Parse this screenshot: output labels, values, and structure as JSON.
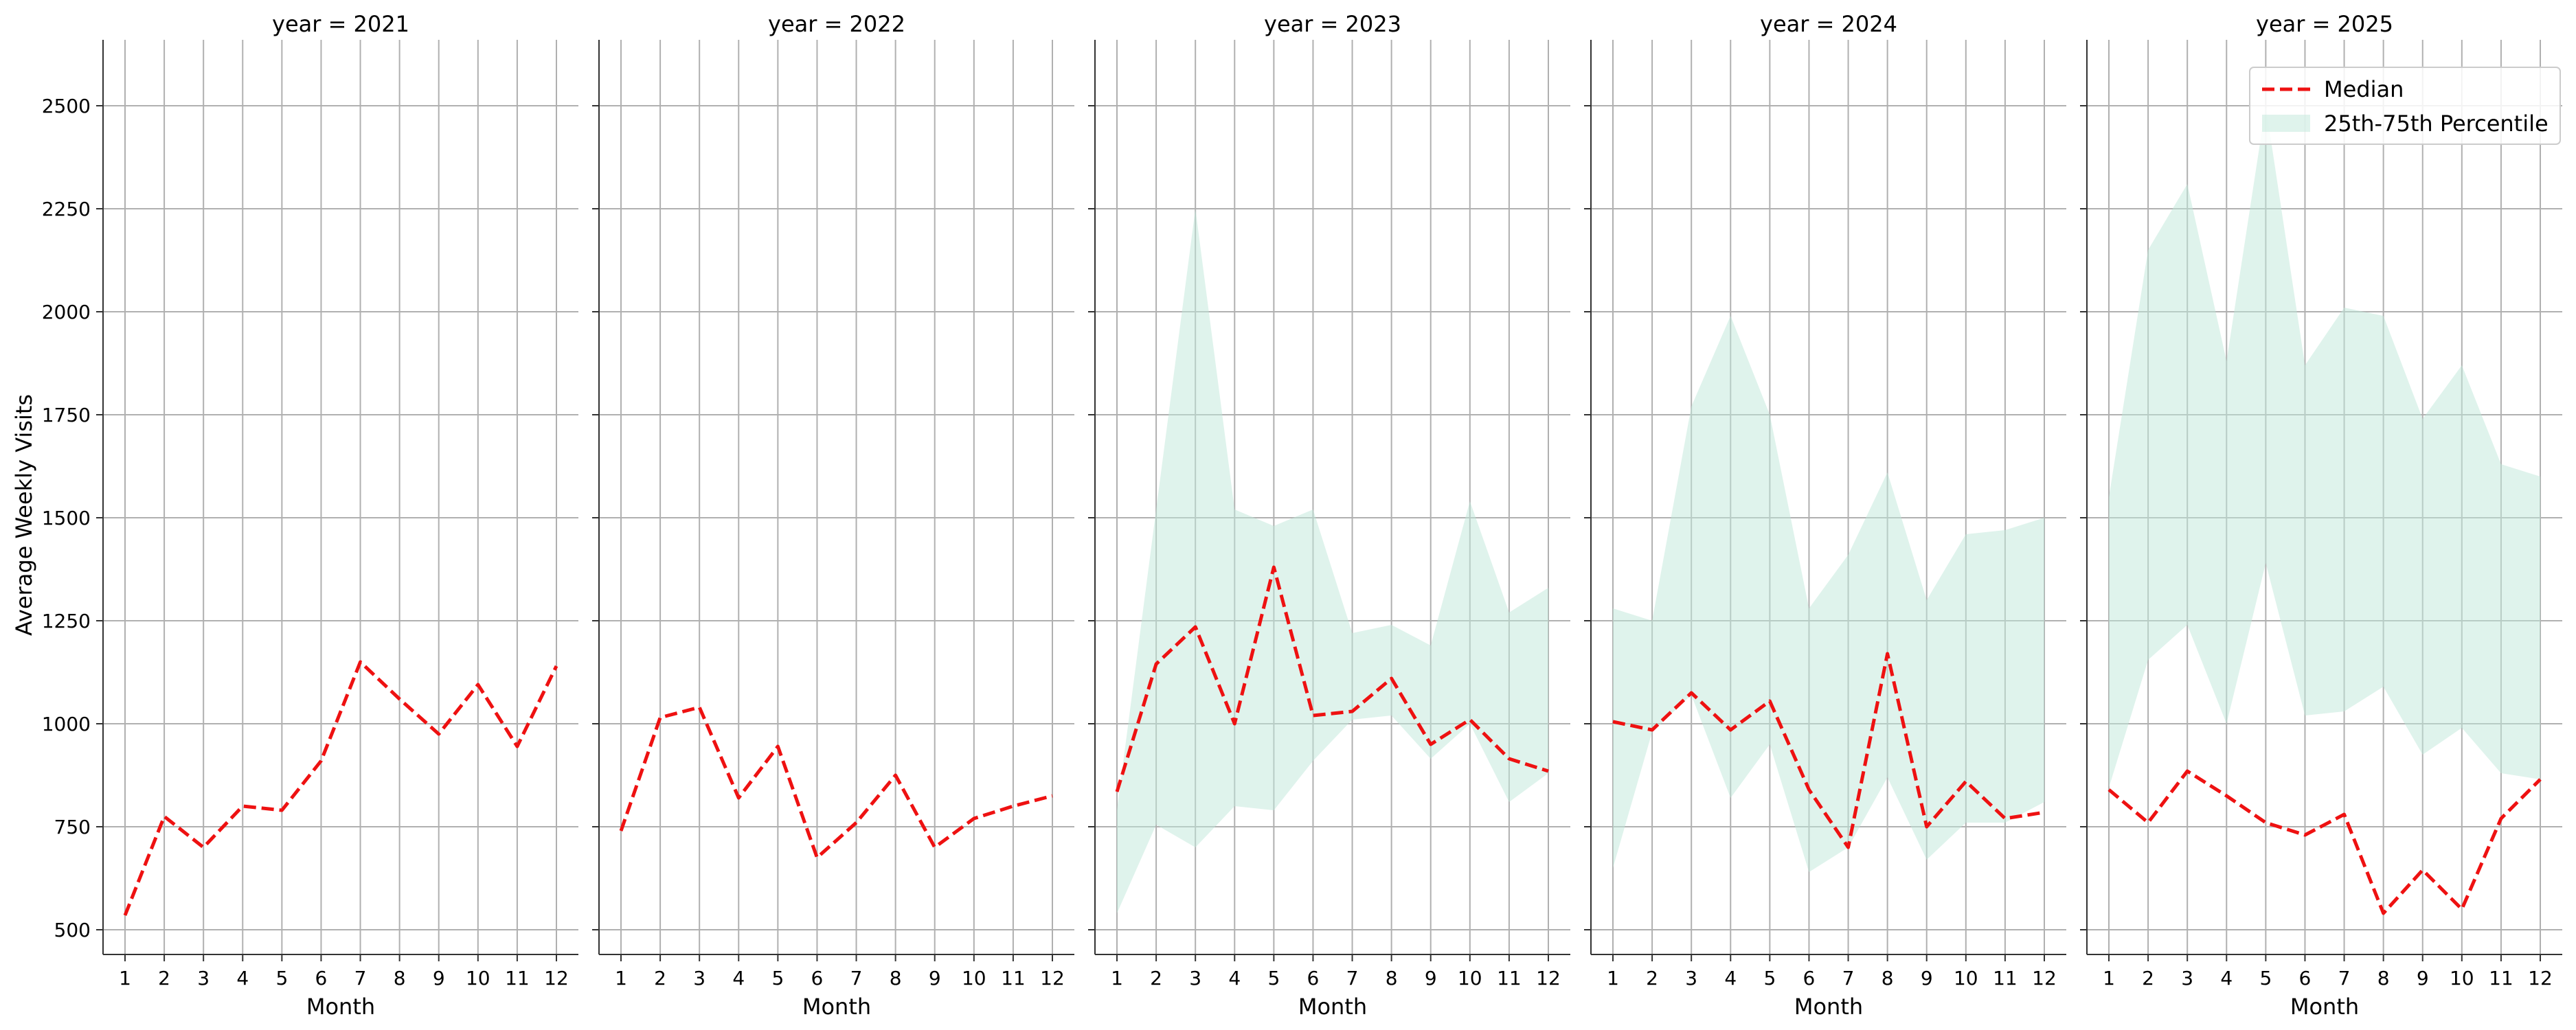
{
  "chart_data": {
    "type": "line",
    "ylabel": "Average Weekly Visits",
    "xlabel": "Month",
    "x": [
      1,
      2,
      3,
      4,
      5,
      6,
      7,
      8,
      9,
      10,
      11,
      12
    ],
    "ylim": [
      440,
      2660
    ],
    "yticks": [
      500,
      750,
      1000,
      1250,
      1500,
      1750,
      2000,
      2250,
      2500
    ],
    "grid": true,
    "legend": {
      "placement": "top-right",
      "median_label": "Median",
      "band_label": "25th-75th Percentile"
    },
    "colors": {
      "median": "#ee1111",
      "band": "#bfe8da",
      "grid": "#b0b0b0",
      "axis": "#333333"
    },
    "facets": [
      {
        "title": "year = 2021",
        "median": [
          535,
          775,
          700,
          800,
          790,
          910,
          1150,
          1060,
          975,
          1095,
          945,
          1140
        ],
        "p25": null,
        "p75": null
      },
      {
        "title": "year = 2022",
        "median": [
          740,
          1015,
          1040,
          820,
          945,
          675,
          760,
          875,
          700,
          770,
          800,
          825
        ],
        "p25": null,
        "p75": null
      },
      {
        "title": "year = 2023",
        "median": [
          835,
          1145,
          1235,
          1000,
          1380,
          1020,
          1030,
          1110,
          950,
          1010,
          915,
          885
        ],
        "p25": [
          540,
          755,
          700,
          800,
          790,
          910,
          1010,
          1020,
          915,
          1000,
          810,
          880
        ],
        "p75": [
          790,
          1520,
          2250,
          1520,
          1480,
          1520,
          1220,
          1240,
          1190,
          1540,
          1270,
          1330
        ]
      },
      {
        "title": "year = 2024",
        "median": [
          1005,
          985,
          1075,
          985,
          1055,
          840,
          700,
          1170,
          750,
          860,
          770,
          785
        ],
        "p25": [
          650,
          980,
          1070,
          820,
          950,
          640,
          700,
          870,
          670,
          760,
          760,
          810
        ],
        "p75": [
          1280,
          1250,
          1770,
          1990,
          1750,
          1280,
          1410,
          1610,
          1300,
          1460,
          1470,
          1500
        ]
      },
      {
        "title": "year = 2025",
        "median": [
          840,
          760,
          885,
          825,
          760,
          730,
          780,
          540,
          645,
          550,
          770,
          865
        ],
        "p25": [
          845,
          1155,
          1240,
          1000,
          1390,
          1020,
          1030,
          1090,
          925,
          990,
          880,
          865
        ],
        "p75": [
          1550,
          2150,
          2310,
          1880,
          2500,
          1870,
          2010,
          1990,
          1740,
          1870,
          1630,
          1600
        ]
      }
    ]
  }
}
